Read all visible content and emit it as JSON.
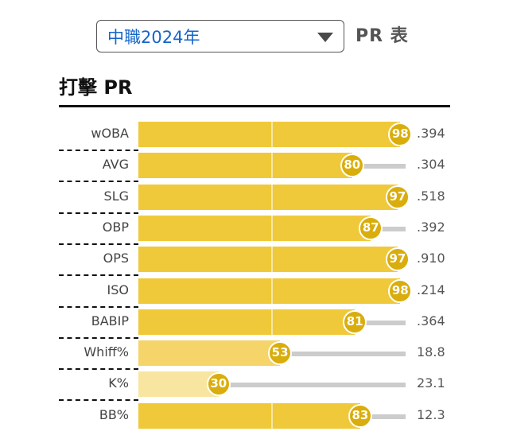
{
  "season_select": {
    "value": "中職2024年"
  },
  "header_suffix": "PR 表",
  "section": {
    "title": "打擊 PR"
  },
  "pr_max": 100,
  "colors": {
    "selector_text": "#1565c8",
    "bar_high": "#f0c93a",
    "bar_mid": "#f5d56a",
    "bar_low": "#f8e6a0",
    "badge": "#d9ad0b",
    "track": "#cccccc"
  },
  "rows": [
    {
      "label": "wOBA",
      "pr": 98,
      "value": ".394"
    },
    {
      "label": "AVG",
      "pr": 80,
      "value": ".304"
    },
    {
      "label": "SLG",
      "pr": 97,
      "value": ".518"
    },
    {
      "label": "OBP",
      "pr": 87,
      "value": ".392"
    },
    {
      "label": "OPS",
      "pr": 97,
      "value": ".910"
    },
    {
      "label": "ISO",
      "pr": 98,
      "value": ".214"
    },
    {
      "label": "BABIP",
      "pr": 81,
      "value": ".364"
    },
    {
      "label": "Whiff%",
      "pr": 53,
      "value": "18.8"
    },
    {
      "label": "K%",
      "pr": 30,
      "value": "23.1"
    },
    {
      "label": "BB%",
      "pr": 83,
      "value": "12.3"
    }
  ]
}
